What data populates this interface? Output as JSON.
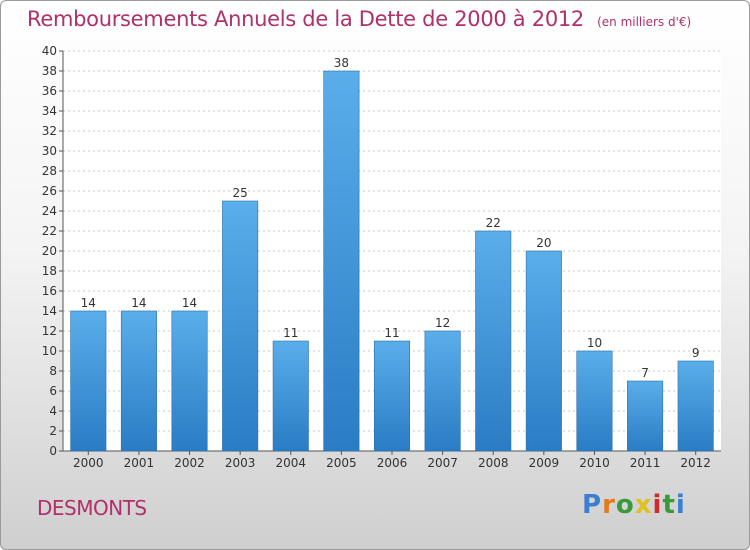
{
  "chart_data": {
    "type": "bar",
    "title": "Remboursements Annuels de la Dette de 2000 à 2012",
    "unit_note": "(en milliers d'€)",
    "categories": [
      "2000",
      "2001",
      "2002",
      "2003",
      "2004",
      "2005",
      "2006",
      "2007",
      "2008",
      "2009",
      "2010",
      "2011",
      "2012"
    ],
    "values": [
      14,
      14,
      14,
      25,
      11,
      38,
      11,
      12,
      22,
      20,
      10,
      7,
      9
    ],
    "ylim": [
      0,
      40
    ],
    "yticks": [
      0,
      2,
      4,
      6,
      8,
      10,
      12,
      14,
      16,
      18,
      20,
      22,
      24,
      26,
      28,
      30,
      32,
      34,
      36,
      38,
      40
    ],
    "grid": true,
    "bar_color": "#4a9ee0"
  },
  "commune": "DESMONTS",
  "logo": {
    "letters": [
      "P",
      "r",
      "o",
      "x",
      "i",
      "t",
      "i"
    ],
    "colors": [
      "#3a7fd0",
      "#e07a1a",
      "#3a9a3a",
      "#e0c020",
      "#d02a2a",
      "#3a9a3a",
      "#3a7fd0"
    ]
  }
}
